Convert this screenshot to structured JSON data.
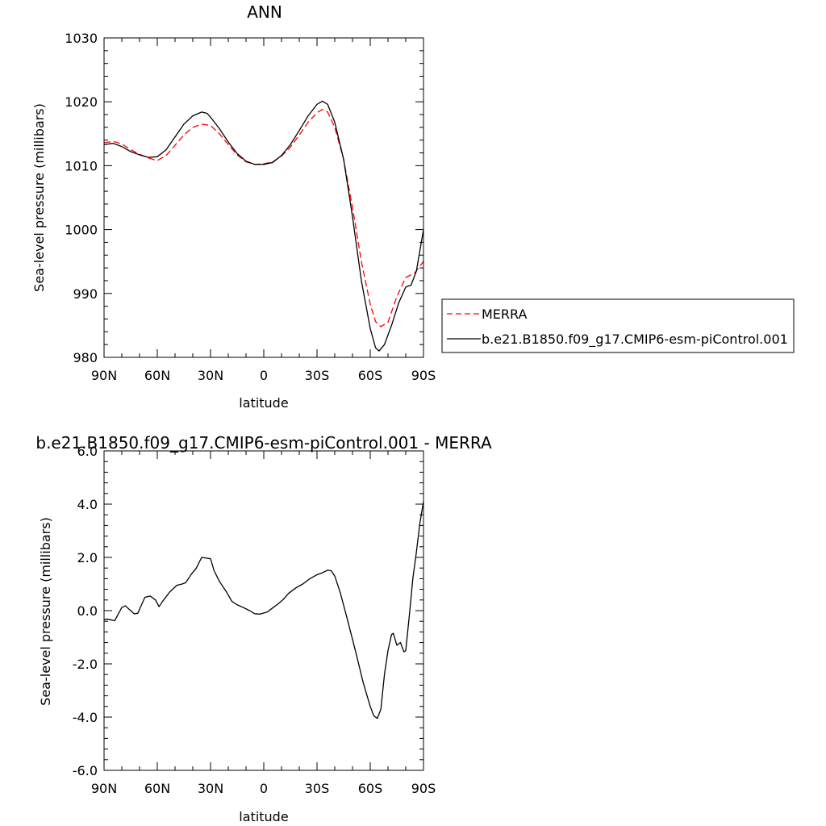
{
  "chart_data": [
    {
      "type": "line",
      "title": "ANN",
      "xlabel": "latitude",
      "ylabel": "Sea-level pressure (millibars)",
      "xlim": [
        90,
        -90
      ],
      "ylim": [
        980,
        1030
      ],
      "x_ticks": [
        90,
        60,
        30,
        0,
        -30,
        -60,
        -90
      ],
      "x_tick_labels": [
        "90N",
        "60N",
        "30N",
        "0",
        "30S",
        "60S",
        "90S"
      ],
      "y_ticks": [
        980,
        990,
        1000,
        1010,
        1020,
        1030
      ],
      "y_tick_labels": [
        "980",
        "990",
        "1000",
        "1010",
        "1020",
        "1030"
      ],
      "grid": false,
      "legend_position": "right, outside plot",
      "series": [
        {
          "name": "MERRA",
          "color": "#ff0000",
          "dash": "dashed",
          "points": [
            [
              90,
              1013.6
            ],
            [
              85,
              1013.8
            ],
            [
              80,
              1013.4
            ],
            [
              75,
              1012.5
            ],
            [
              70,
              1011.8
            ],
            [
              65,
              1011.2
            ],
            [
              60,
              1010.8
            ],
            [
              55,
              1011.6
            ],
            [
              50,
              1013.2
            ],
            [
              45,
              1014.8
            ],
            [
              40,
              1016.0
            ],
            [
              35,
              1016.5
            ],
            [
              30,
              1016.3
            ],
            [
              25,
              1015.0
            ],
            [
              20,
              1013.3
            ],
            [
              15,
              1011.7
            ],
            [
              10,
              1010.6
            ],
            [
              5,
              1010.2
            ],
            [
              0,
              1010.3
            ],
            [
              -5,
              1010.6
            ],
            [
              -10,
              1011.5
            ],
            [
              -15,
              1012.9
            ],
            [
              -20,
              1014.8
            ],
            [
              -25,
              1016.8
            ],
            [
              -30,
              1018.3
            ],
            [
              -33,
              1018.8
            ],
            [
              -36,
              1018.4
            ],
            [
              -40,
              1016.0
            ],
            [
              -45,
              1011.0
            ],
            [
              -50,
              1003.5
            ],
            [
              -55,
              995.0
            ],
            [
              -60,
              988.3
            ],
            [
              -63,
              985.6
            ],
            [
              -66,
              984.8
            ],
            [
              -70,
              985.5
            ],
            [
              -75,
              989.5
            ],
            [
              -80,
              992.5
            ],
            [
              -85,
              993.2
            ],
            [
              -90,
              995.0
            ]
          ]
        },
        {
          "name": "b.e21.B1850.f09_g17.CMIP6-esm-piControl.001",
          "color": "#000000",
          "dash": "solid",
          "points": [
            [
              90,
              1013.3
            ],
            [
              85,
              1013.5
            ],
            [
              80,
              1013.0
            ],
            [
              75,
              1012.2
            ],
            [
              70,
              1011.7
            ],
            [
              65,
              1011.3
            ],
            [
              60,
              1011.4
            ],
            [
              55,
              1012.5
            ],
            [
              50,
              1014.5
            ],
            [
              45,
              1016.5
            ],
            [
              40,
              1017.8
            ],
            [
              35,
              1018.4
            ],
            [
              32,
              1018.2
            ],
            [
              30,
              1017.6
            ],
            [
              25,
              1015.8
            ],
            [
              20,
              1013.7
            ],
            [
              15,
              1011.9
            ],
            [
              10,
              1010.7
            ],
            [
              5,
              1010.2
            ],
            [
              0,
              1010.2
            ],
            [
              -5,
              1010.5
            ],
            [
              -10,
              1011.6
            ],
            [
              -15,
              1013.3
            ],
            [
              -20,
              1015.5
            ],
            [
              -25,
              1017.8
            ],
            [
              -30,
              1019.6
            ],
            [
              -33,
              1020.1
            ],
            [
              -36,
              1019.6
            ],
            [
              -40,
              1016.8
            ],
            [
              -45,
              1011.0
            ],
            [
              -50,
              1002.0
            ],
            [
              -55,
              992.0
            ],
            [
              -60,
              984.5
            ],
            [
              -63,
              981.5
            ],
            [
              -65,
              981.0
            ],
            [
              -68,
              982.0
            ],
            [
              -72,
              985.0
            ],
            [
              -76,
              988.5
            ],
            [
              -80,
              991.0
            ],
            [
              -83,
              991.3
            ],
            [
              -86,
              993.5
            ],
            [
              -90,
              1000.0
            ]
          ]
        }
      ]
    },
    {
      "type": "line",
      "title": "b.e21.B1850.f09_g17.CMIP6-esm-piControl.001 - MERRA",
      "xlabel": "latitude",
      "ylabel": "Sea-level pressure (millibars)",
      "xlim": [
        90,
        -90
      ],
      "ylim": [
        -6.0,
        6.0
      ],
      "x_ticks": [
        90,
        60,
        30,
        0,
        -30,
        -60,
        -90
      ],
      "x_tick_labels": [
        "90N",
        "60N",
        "30N",
        "0",
        "30S",
        "60S",
        "90S"
      ],
      "y_ticks": [
        -6,
        -4,
        -2,
        0,
        2,
        4,
        6
      ],
      "y_tick_labels": [
        "-6.0",
        "-4.0",
        "-2.0",
        "0.0",
        "2.0",
        "4.0",
        "6.0"
      ],
      "grid": false,
      "series": [
        {
          "color": "#000000",
          "dash": "solid",
          "points": [
            [
              90,
              -0.33
            ],
            [
              88,
              -0.32
            ],
            [
              84,
              -0.38
            ],
            [
              80,
              0.12
            ],
            [
              78,
              0.18
            ],
            [
              75,
              0.0
            ],
            [
              73,
              -0.12
            ],
            [
              71,
              -0.1
            ],
            [
              69,
              0.2
            ],
            [
              67,
              0.5
            ],
            [
              64,
              0.55
            ],
            [
              61,
              0.4
            ],
            [
              59,
              0.15
            ],
            [
              57,
              0.35
            ],
            [
              53,
              0.7
            ],
            [
              49,
              0.95
            ],
            [
              46,
              1.0
            ],
            [
              44,
              1.05
            ],
            [
              41,
              1.35
            ],
            [
              38,
              1.6
            ],
            [
              35,
              2.0
            ],
            [
              32,
              1.97
            ],
            [
              30,
              1.95
            ],
            [
              28,
              1.5
            ],
            [
              25,
              1.1
            ],
            [
              21,
              0.7
            ],
            [
              18,
              0.35
            ],
            [
              15,
              0.22
            ],
            [
              11,
              0.1
            ],
            [
              8,
              0.0
            ],
            [
              5,
              -0.12
            ],
            [
              2,
              -0.13
            ],
            [
              -2,
              -0.05
            ],
            [
              -5,
              0.1
            ],
            [
              -8,
              0.25
            ],
            [
              -11,
              0.42
            ],
            [
              -14,
              0.65
            ],
            [
              -18,
              0.85
            ],
            [
              -22,
              1.0
            ],
            [
              -26,
              1.2
            ],
            [
              -30,
              1.35
            ],
            [
              -33,
              1.42
            ],
            [
              -36,
              1.52
            ],
            [
              -38,
              1.5
            ],
            [
              -40,
              1.3
            ],
            [
              -43,
              0.7
            ],
            [
              -47,
              -0.3
            ],
            [
              -52,
              -1.6
            ],
            [
              -56,
              -2.7
            ],
            [
              -60,
              -3.6
            ],
            [
              -62,
              -3.95
            ],
            [
              -64,
              -4.05
            ],
            [
              -66,
              -3.7
            ],
            [
              -68,
              -2.4
            ],
            [
              -70,
              -1.5
            ],
            [
              -72,
              -0.9
            ],
            [
              -73,
              -0.85
            ],
            [
              -75,
              -1.3
            ],
            [
              -77,
              -1.2
            ],
            [
              -79,
              -1.55
            ],
            [
              -80,
              -1.5
            ],
            [
              -82,
              -0.2
            ],
            [
              -84,
              1.2
            ],
            [
              -86,
              2.2
            ],
            [
              -88,
              3.3
            ],
            [
              -90,
              4.1
            ]
          ]
        }
      ]
    }
  ]
}
